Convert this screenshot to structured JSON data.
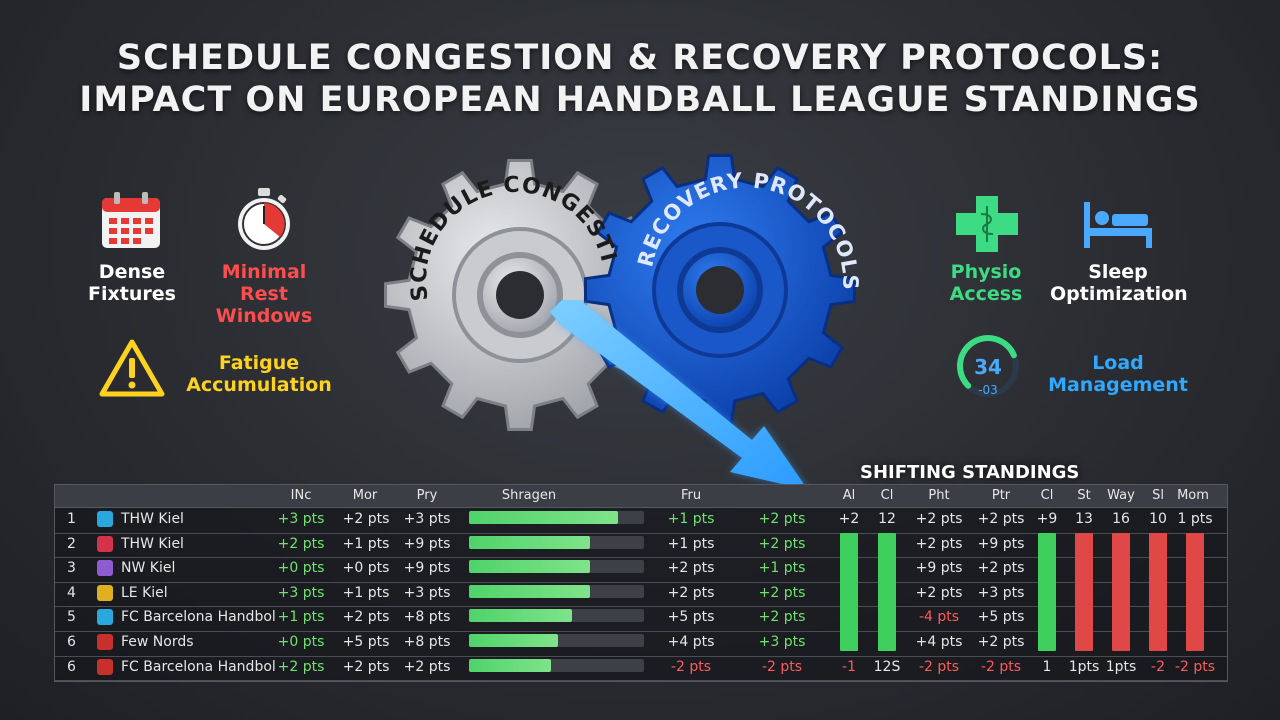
{
  "title": {
    "line1": "SCHEDULE CONGESTION & RECOVERY PROTOCOLS:",
    "line2": "IMPACT ON EUROPEAN HANDBALL LEAGUE STANDINGS"
  },
  "left_features": [
    {
      "icon": "calendar-icon",
      "line1": "Dense",
      "line2": "Fixtures",
      "color": "#ffffff"
    },
    {
      "icon": "stopwatch-icon",
      "line1": "Minimal",
      "line2": "Rest Windows",
      "color": "#ff4d4d"
    },
    {
      "icon": "warning-icon",
      "line1": "Fatigue",
      "line2": "Accumulation",
      "color": "#ffd21f"
    }
  ],
  "right_features": [
    {
      "icon": "medical-cross-icon",
      "line1": "Physio",
      "line2": "Access",
      "color": "#3ddc84"
    },
    {
      "icon": "bed-icon",
      "line1": "Sleep",
      "line2": "Optimization",
      "color": "#ffffff"
    },
    {
      "icon": "gauge-icon",
      "line1": "Load",
      "line2": "Management",
      "color": "#2fa8ff"
    }
  ],
  "gauge": {
    "value": "34",
    "sub": "-03",
    "level": 0.75
  },
  "gears": {
    "left_label": "SCHEDULE CONGESTION",
    "right_label": "RECOVERY PROTOCOLS"
  },
  "standings_title": "SHIFTING STANDINGS",
  "table": {
    "headers": [
      "INc",
      "Mor",
      "Pry",
      "Shragen",
      "Fru",
      "",
      "Al",
      "Cl",
      "Pht",
      "Ptr",
      "Cl",
      "St",
      "Way",
      "Sl",
      "Mom"
    ],
    "rows": [
      {
        "rank": "1",
        "team": "THW Kiel",
        "logo_color": "#29a8e0",
        "c1": "+3 pts",
        "c2": "+2 pts",
        "c3": "+3 pts",
        "bar": 0.85,
        "c5": "+1 pts",
        "c6": "+2 pts",
        "c7": "+2",
        "c8": "12",
        "c9": "+2 pts",
        "c10": "+2 pts",
        "c11": "+9",
        "c12": "13",
        "c13": "16",
        "c14": "10",
        "c15": "1 pts"
      },
      {
        "rank": "2",
        "team": "THW Kiel",
        "logo_color": "#d4334a",
        "c1": "+2 pts",
        "c2": "+1 pts",
        "c3": "+9 pts",
        "bar": 0.69,
        "c5": "+1 pts",
        "c6": "+2 pts",
        "c9": "+2 pts",
        "c10": "+9 pts"
      },
      {
        "rank": "3",
        "team": "NW Kiel",
        "logo_color": "#8e5bd1",
        "c1": "+0 pts",
        "c2": "+0 pts",
        "c3": "+9 pts",
        "bar": 0.69,
        "c5": "+2 pts",
        "c6": "+1 pts",
        "c9": "+9 pts",
        "c10": "+2 pts"
      },
      {
        "rank": "4",
        "team": "LE Kiel",
        "logo_color": "#e0b020",
        "c1": "+3 pts",
        "c2": "+1 pts",
        "c3": "+3 pts",
        "bar": 0.69,
        "c5": "+2 pts",
        "c6": "+2 pts",
        "c9": "+2 pts",
        "c10": "+3 pts"
      },
      {
        "rank": "5",
        "team": "FC Barcelona Handbol",
        "logo_color": "#29a8e0",
        "c1": "+1 pts",
        "c2": "+2 pts",
        "c3": "+8 pts",
        "bar": 0.59,
        "c5": "+5 pts",
        "c6": "+2 pts",
        "c9": "-4 pts",
        "c10": "+5 pts"
      },
      {
        "rank": "6",
        "team": "Few Nords",
        "logo_color": "#c8302c",
        "c1": "+0 pts",
        "c2": "+5 pts",
        "c3": "+8 pts",
        "bar": 0.51,
        "c5": "+4 pts",
        "c6": "+3 pts",
        "c9": "+4 pts",
        "c10": "+2 pts"
      },
      {
        "rank": "6",
        "team": "FC Barcelona Handbol",
        "logo_color": "#c8302c",
        "c1": "+2 pts",
        "c2": "+2 pts",
        "c3": "+2 pts",
        "bar": 0.47,
        "c5": "-2 pts",
        "c6": "-2 pts",
        "c7": "-1",
        "c8": "12S",
        "c9": "-2 pts",
        "c10": "-2 pts",
        "c11": "1",
        "c12": "1pts",
        "c13": "1pts",
        "c14": "-2",
        "c15": "-2 pts"
      }
    ]
  }
}
